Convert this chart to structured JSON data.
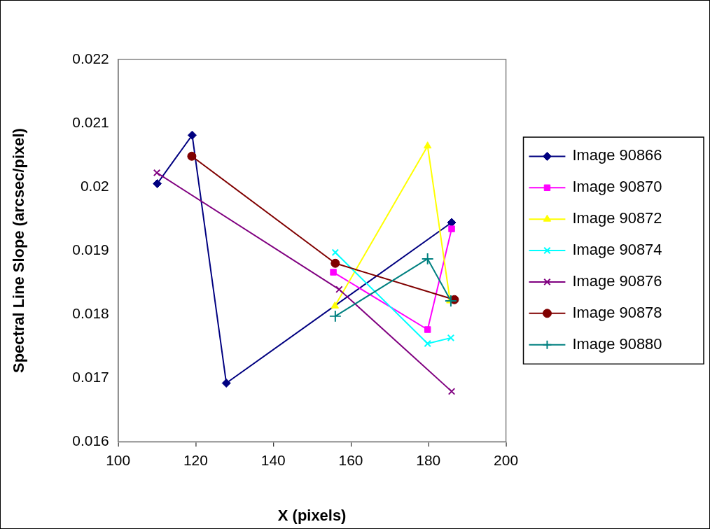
{
  "chart_data": {
    "type": "line",
    "xlabel": "X (pixels)",
    "ylabel": "Spectral Line Slope (arcsec/pixel)",
    "xlim": [
      100,
      200
    ],
    "xticks": [
      100,
      120,
      140,
      160,
      180,
      200
    ],
    "ylim": [
      0.016,
      0.022
    ],
    "yticks": [
      0.016,
      0.017,
      0.018,
      0.019,
      0.02,
      0.021,
      0.022
    ],
    "legend": "right",
    "line_style": "solid",
    "series": [
      {
        "name": "Image 90866",
        "color": "#000080",
        "marker": "diamond",
        "x": [
          110.1,
          119.1,
          127.9,
          186
        ],
        "values": [
          0.02005,
          0.02081,
          0.01692,
          0.01944
        ]
      },
      {
        "name": "Image 90870",
        "color": "#ff00ff",
        "marker": "square",
        "x": [
          155.5,
          179.8,
          186
        ],
        "values": [
          0.01866,
          0.01776,
          0.01934
        ]
      },
      {
        "name": "Image 90872",
        "color": "#ffff00",
        "marker": "triangle",
        "x": [
          155.9,
          179.8,
          185.6
        ],
        "values": [
          0.01813,
          0.02064,
          0.01821
        ]
      },
      {
        "name": "Image 90874",
        "color": "#00ffff",
        "marker": "cross",
        "x": [
          156,
          179.8,
          185.8
        ],
        "values": [
          0.01897,
          0.01754,
          0.01763
        ]
      },
      {
        "name": "Image 90876",
        "color": "#800080",
        "marker": "cross",
        "x": [
          110,
          157,
          186
        ],
        "values": [
          0.02022,
          0.01839,
          0.01679
        ]
      },
      {
        "name": "Image 90878",
        "color": "#800000",
        "marker": "circle",
        "x": [
          119,
          156,
          186.7
        ],
        "values": [
          0.02048,
          0.0188,
          0.01823
        ]
      },
      {
        "name": "Image 90880",
        "color": "#008080",
        "marker": "plus",
        "x": [
          156,
          179.8,
          185.8
        ],
        "values": [
          0.01797,
          0.01887,
          0.01821
        ]
      }
    ]
  }
}
